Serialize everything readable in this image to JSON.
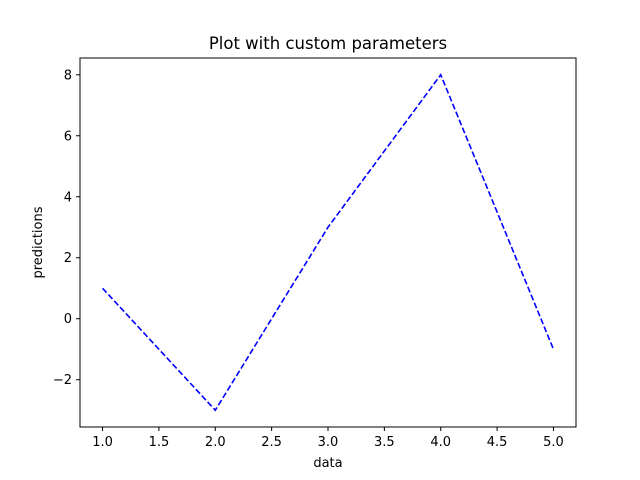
{
  "chart_data": {
    "type": "line",
    "title": "Plot with custom parameters",
    "xlabel": "data",
    "ylabel": "predictions",
    "x": [
      1.0,
      2.0,
      3.0,
      4.0,
      5.0
    ],
    "series": [
      {
        "values": [
          1,
          -3,
          3,
          8,
          -1
        ],
        "color": "#0000ff",
        "line_style": "dashed"
      }
    ],
    "xlim": [
      0.8,
      5.2
    ],
    "ylim": [
      -3.55,
      8.55
    ],
    "x_ticks": [
      1.0,
      1.5,
      2.0,
      2.5,
      3.0,
      3.5,
      4.0,
      4.5,
      5.0
    ],
    "x_tick_labels": [
      "1.0",
      "1.5",
      "2.0",
      "2.5",
      "3.0",
      "3.5",
      "4.0",
      "4.5",
      "5.0"
    ],
    "y_ticks": [
      -2,
      0,
      2,
      4,
      6,
      8
    ],
    "y_tick_labels": [
      "−2",
      "0",
      "2",
      "4",
      "6",
      "8"
    ],
    "grid": false,
    "legend": "none"
  }
}
